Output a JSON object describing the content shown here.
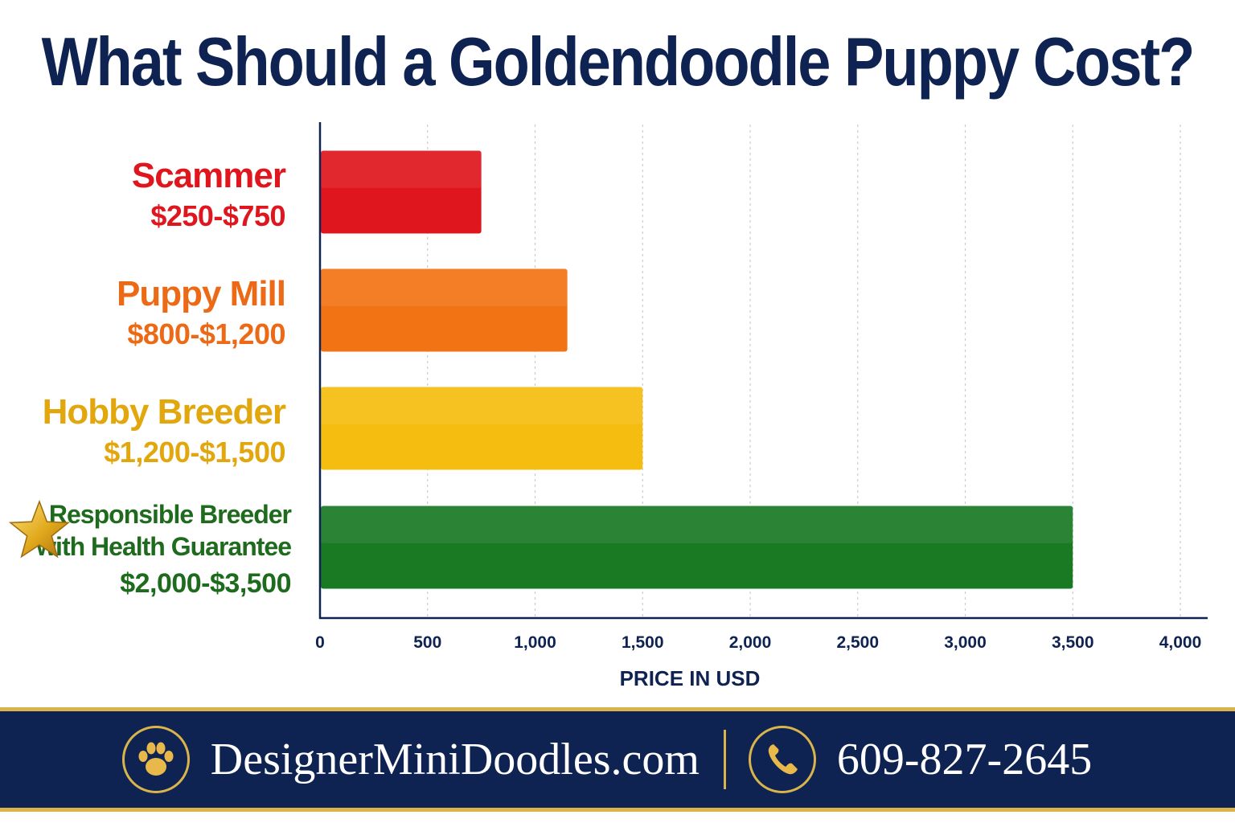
{
  "title": "What Should a Goldendoodle Puppy Cost?",
  "chart_data": {
    "type": "bar",
    "orientation": "horizontal",
    "categories": [
      {
        "name_lines": [
          "Scammer"
        ],
        "range_label": "$250-$750",
        "value": 750,
        "color": "#e0161e"
      },
      {
        "name_lines": [
          "Puppy Mill"
        ],
        "range_label": "$800-$1,200",
        "value": 1150,
        "color": "#f27314"
      },
      {
        "name_lines": [
          "Hobby Breeder"
        ],
        "range_label": "$1,200-$1,500",
        "value": 1500,
        "color": "#f5bd10"
      },
      {
        "name_lines": [
          "Responsible Breeder",
          "with Health Guarantee"
        ],
        "range_label": "$2,000-$3,500",
        "value": 3500,
        "color": "#1a7a24",
        "icon": "star-icon"
      }
    ],
    "label_colors": [
      "#e0161e",
      "#ec6a16",
      "#e3a70e",
      "#1e6b1e"
    ],
    "xlim": [
      0,
      4000
    ],
    "xticks": [
      "0",
      "500",
      "1,000",
      "1,500",
      "2,000",
      "2,500",
      "3,000",
      "3,500",
      "4,000"
    ],
    "xlabel": "PRICE IN USD",
    "grid": "vertical dotted"
  },
  "footer": {
    "website": "DesignerMiniDoodles.com",
    "phone": "609-827-2645",
    "paw_icon": "paw-icon",
    "phone_icon": "phone-icon",
    "accent": "#d9b44a",
    "background": "#0f2352"
  }
}
